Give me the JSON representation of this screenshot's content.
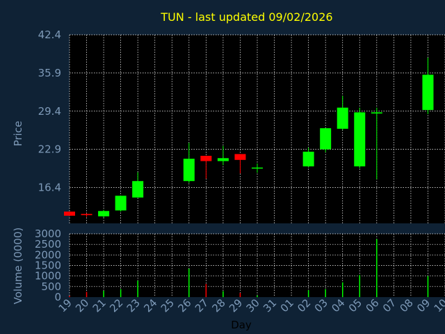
{
  "chart_data": [
    {
      "type": "candlestick",
      "title": "TUN - last updated 09/02/2026",
      "ylabel": "Price",
      "ylim": [
        10.3,
        42.4
      ],
      "yticks": [
        "42.4",
        "35.9",
        "29.4",
        "22.9",
        "16.4"
      ],
      "ytick_values": [
        42.4,
        35.9,
        29.4,
        22.9,
        16.4
      ],
      "grid": true,
      "candles": [
        {
          "x": 19,
          "open": 12.3,
          "close": 11.6,
          "high": 12.3,
          "low": 11.6,
          "color": "#ff0000"
        },
        {
          "x": 20,
          "open": 11.9,
          "close": 11.7,
          "high": 12.0,
          "low": 11.4,
          "color": "#ff0000"
        },
        {
          "x": 21,
          "open": 11.5,
          "close": 12.4,
          "high": 12.6,
          "low": 11.3,
          "color": "#00ff00"
        },
        {
          "x": 22,
          "open": 12.5,
          "close": 15.0,
          "high": 15.0,
          "low": 12.3,
          "color": "#00ff00"
        },
        {
          "x": 23,
          "open": 14.7,
          "close": 17.5,
          "high": 19.0,
          "low": 14.7,
          "color": "#00ff00"
        },
        {
          "x": 26,
          "open": 17.5,
          "close": 21.3,
          "high": 24.0,
          "low": 17.2,
          "color": "#00ff00"
        },
        {
          "x": 27,
          "open": 21.8,
          "close": 20.9,
          "high": 21.8,
          "low": 17.9,
          "color": "#ff0000"
        },
        {
          "x": 28,
          "open": 20.9,
          "close": 21.4,
          "high": 23.5,
          "low": 20.2,
          "color": "#00ff00"
        },
        {
          "x": 29,
          "open": 22.1,
          "close": 21.1,
          "high": 22.1,
          "low": 18.8,
          "color": "#ff0000"
        },
        {
          "x": 30,
          "open": 19.7,
          "close": 19.8,
          "high": 20.5,
          "low": 18.9,
          "color": "#00ff00"
        },
        {
          "x": "02",
          "open": 20.0,
          "close": 22.5,
          "high": 23.2,
          "low": 19.9,
          "color": "#00ff00"
        },
        {
          "x": "03",
          "open": 22.9,
          "close": 26.5,
          "high": 26.5,
          "low": 22.4,
          "color": "#00ff00"
        },
        {
          "x": "04",
          "open": 26.4,
          "close": 30.0,
          "high": 32.0,
          "low": 26.2,
          "color": "#00ff00"
        },
        {
          "x": "05",
          "open": 20.0,
          "close": 29.2,
          "high": 30.0,
          "low": 19.7,
          "color": "#00ff00"
        },
        {
          "x": "06",
          "open": 29.0,
          "close": 29.2,
          "high": 30.0,
          "low": 17.8,
          "color": "#00ff00"
        },
        {
          "x": "09",
          "open": 29.6,
          "close": 35.6,
          "high": 38.5,
          "low": 28.9,
          "color": "#00ff00"
        }
      ]
    },
    {
      "type": "bar",
      "ylabel": "Volume (0000)",
      "xlabel": "Day",
      "ylim": [
        0,
        3000
      ],
      "yticks": [
        "3000",
        "2500",
        "2000",
        "1500",
        "1000",
        "500",
        "0"
      ],
      "ytick_values": [
        3000,
        2500,
        2000,
        1500,
        1000,
        500,
        0
      ],
      "categories": [
        "19",
        "20",
        "21",
        "22",
        "23",
        "24",
        "25",
        "26",
        "27",
        "28",
        "29",
        "30",
        "31",
        "01",
        "02",
        "03",
        "04",
        "05",
        "06",
        "07",
        "08",
        "09",
        "10"
      ],
      "bars": [
        {
          "x": 19,
          "value": 60,
          "color": "#ff0000"
        },
        {
          "x": 20,
          "value": 250,
          "color": "#ff0000"
        },
        {
          "x": 21,
          "value": 300,
          "color": "#00ff00"
        },
        {
          "x": 22,
          "value": 380,
          "color": "#00ff00"
        },
        {
          "x": 23,
          "value": 780,
          "color": "#00ff00"
        },
        {
          "x": 26,
          "value": 1350,
          "color": "#00ff00"
        },
        {
          "x": 27,
          "value": 620,
          "color": "#ff0000"
        },
        {
          "x": 28,
          "value": 280,
          "color": "#00ff00"
        },
        {
          "x": 29,
          "value": 200,
          "color": "#ff0000"
        },
        {
          "x": 30,
          "value": 80,
          "color": "#00ff00"
        },
        {
          "x": "02",
          "value": 330,
          "color": "#00ff00"
        },
        {
          "x": "03",
          "value": 380,
          "color": "#00ff00"
        },
        {
          "x": "04",
          "value": 700,
          "color": "#00ff00"
        },
        {
          "x": "05",
          "value": 1050,
          "color": "#00ff00"
        },
        {
          "x": "06",
          "value": 2750,
          "color": "#00ff00"
        },
        {
          "x": "09",
          "value": 1000,
          "color": "#00ff00"
        }
      ]
    }
  ],
  "colors": {
    "background": "#0f2235",
    "plot_background": "#000000",
    "grid": "#ffffff",
    "title": "#ffff00",
    "axis_text": "#7e9ab8",
    "up": "#00ff00",
    "down": "#ff0000"
  }
}
